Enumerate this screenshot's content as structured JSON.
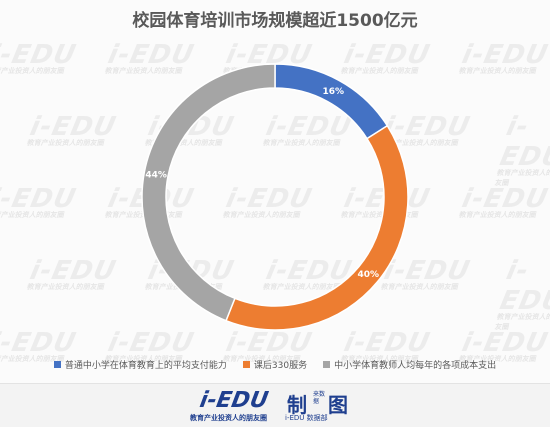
{
  "chart_data": {
    "type": "pie",
    "donut": true,
    "title": "校园体育培训市场规模超近1500亿元",
    "categories": [
      "普通中小学在体育教育上的平均支付能力",
      "课后330服务",
      "中小学体育教师人均每年的各项成本支出"
    ],
    "values": [
      16,
      40,
      44
    ],
    "value_labels": [
      "16%",
      "40%",
      "44%"
    ],
    "colors": [
      "#4472c4",
      "#ed7d31",
      "#a5a5a5"
    ],
    "legend_position": "bottom"
  },
  "watermark": {
    "text": "i-EDU",
    "subtext": "教育产业投资人的朋友圈"
  },
  "footer": {
    "logo": "i-EDU",
    "slogan": "教育产业投资人的朋友圈",
    "make_char": "制",
    "make_sub": "来数据",
    "tu_char": "图",
    "dept": "i-EDU 数据部"
  }
}
